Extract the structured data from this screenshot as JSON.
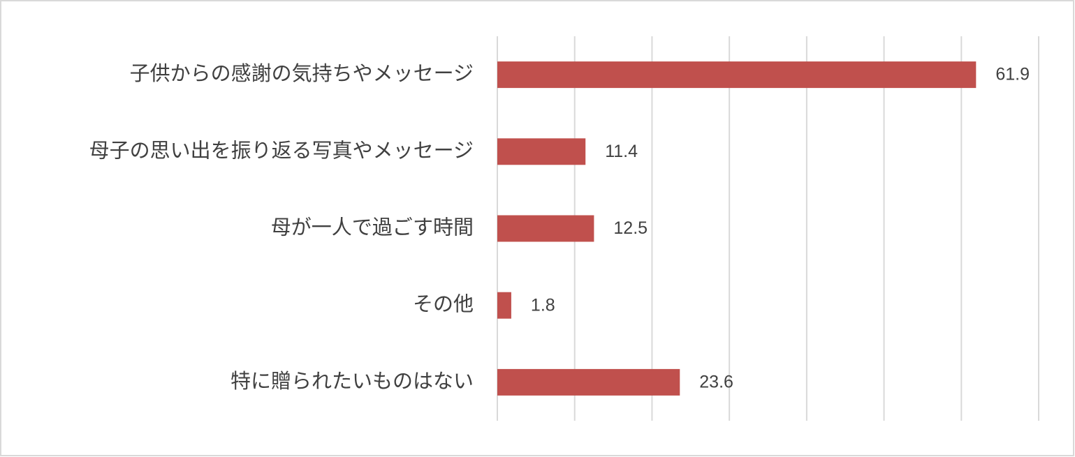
{
  "chart_data": {
    "type": "barh",
    "categories": [
      "子供からの感謝の気持ちやメッセージ",
      "母子の思い出を振り返る写真やメッセージ",
      "母が一人で過ごす時間",
      "その他",
      "特に贈られたいものはない"
    ],
    "values": [
      61.9,
      11.4,
      12.5,
      1.8,
      23.6
    ],
    "color": "#c0504d",
    "xlim": [
      0,
      70
    ],
    "xticks": [
      0,
      10,
      20,
      30,
      40,
      50,
      60,
      70
    ],
    "grid": true
  }
}
